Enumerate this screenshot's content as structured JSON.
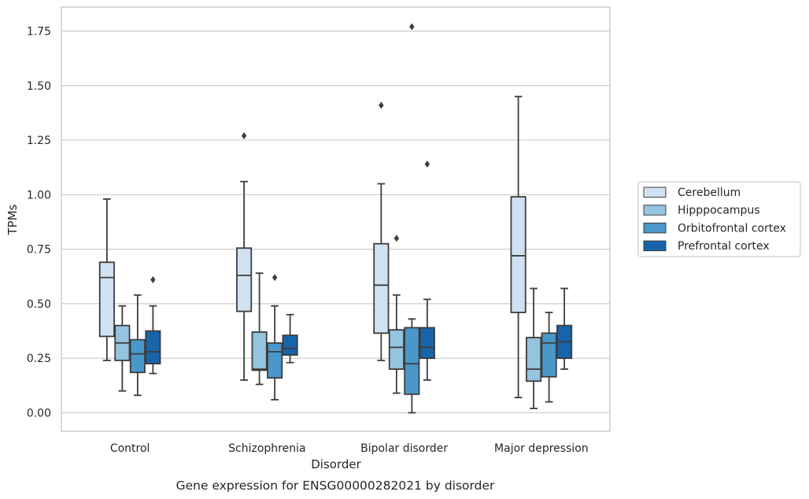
{
  "chart_data": {
    "type": "box",
    "caption": "Gene expression for ENSG00000282021 by disorder",
    "xlabel": "Disorder",
    "ylabel": "TPMs",
    "ylim": [
      -0.085,
      1.86
    ],
    "yticks": [
      "0.00",
      "0.25",
      "0.50",
      "0.75",
      "1.00",
      "1.25",
      "1.50",
      "1.75"
    ],
    "categories": [
      "Control",
      "Schizophrenia",
      "Bipolar disorder",
      "Major depression"
    ],
    "grid": true,
    "legend_position": "right",
    "series": [
      {
        "name": "Cerebellum",
        "color": "#d0e1f2",
        "boxes": [
          {
            "whisker_low": 0.24,
            "q1": 0.35,
            "median": 0.62,
            "q3": 0.69,
            "whisker_high": 0.98,
            "outliers": []
          },
          {
            "whisker_low": 0.15,
            "q1": 0.465,
            "median": 0.63,
            "q3": 0.755,
            "whisker_high": 1.06,
            "outliers": [
              1.27
            ]
          },
          {
            "whisker_low": 0.24,
            "q1": 0.365,
            "median": 0.585,
            "q3": 0.775,
            "whisker_high": 1.05,
            "outliers": [
              1.41
            ]
          },
          {
            "whisker_low": 0.07,
            "q1": 0.46,
            "median": 0.72,
            "q3": 0.99,
            "whisker_high": 1.45,
            "outliers": []
          }
        ]
      },
      {
        "name": "Hipppocampus",
        "color": "#94c4df",
        "boxes": [
          {
            "whisker_low": 0.1,
            "q1": 0.24,
            "median": 0.32,
            "q3": 0.4,
            "whisker_high": 0.49,
            "outliers": []
          },
          {
            "whisker_low": 0.13,
            "q1": 0.195,
            "median": 0.2,
            "q3": 0.37,
            "whisker_high": 0.64,
            "outliers": []
          },
          {
            "whisker_low": 0.09,
            "q1": 0.2,
            "median": 0.3,
            "q3": 0.38,
            "whisker_high": 0.54,
            "outliers": [
              0.8
            ]
          },
          {
            "whisker_low": 0.02,
            "q1": 0.145,
            "median": 0.2,
            "q3": 0.345,
            "whisker_high": 0.57,
            "outliers": []
          }
        ]
      },
      {
        "name": "Orbitofrontal cortex",
        "color": "#4a98c9",
        "boxes": [
          {
            "whisker_low": 0.08,
            "q1": 0.185,
            "median": 0.27,
            "q3": 0.335,
            "whisker_high": 0.54,
            "outliers": []
          },
          {
            "whisker_low": 0.06,
            "q1": 0.16,
            "median": 0.28,
            "q3": 0.32,
            "whisker_high": 0.49,
            "outliers": [
              0.62
            ]
          },
          {
            "whisker_low": 0.0,
            "q1": 0.085,
            "median": 0.225,
            "q3": 0.39,
            "whisker_high": 0.43,
            "outliers": [
              1.77
            ]
          },
          {
            "whisker_low": 0.05,
            "q1": 0.165,
            "median": 0.32,
            "q3": 0.365,
            "whisker_high": 0.46,
            "outliers": []
          }
        ]
      },
      {
        "name": "Prefrontal cortex",
        "color": "#1764ab",
        "boxes": [
          {
            "whisker_low": 0.18,
            "q1": 0.225,
            "median": 0.28,
            "q3": 0.375,
            "whisker_high": 0.49,
            "outliers": [
              0.61
            ]
          },
          {
            "whisker_low": 0.23,
            "q1": 0.265,
            "median": 0.295,
            "q3": 0.355,
            "whisker_high": 0.45,
            "outliers": []
          },
          {
            "whisker_low": 0.15,
            "q1": 0.25,
            "median": 0.3,
            "q3": 0.39,
            "whisker_high": 0.52,
            "outliers": [
              1.14
            ]
          },
          {
            "whisker_low": 0.2,
            "q1": 0.25,
            "median": 0.325,
            "q3": 0.4,
            "whisker_high": 0.57,
            "outliers": []
          }
        ]
      }
    ]
  }
}
